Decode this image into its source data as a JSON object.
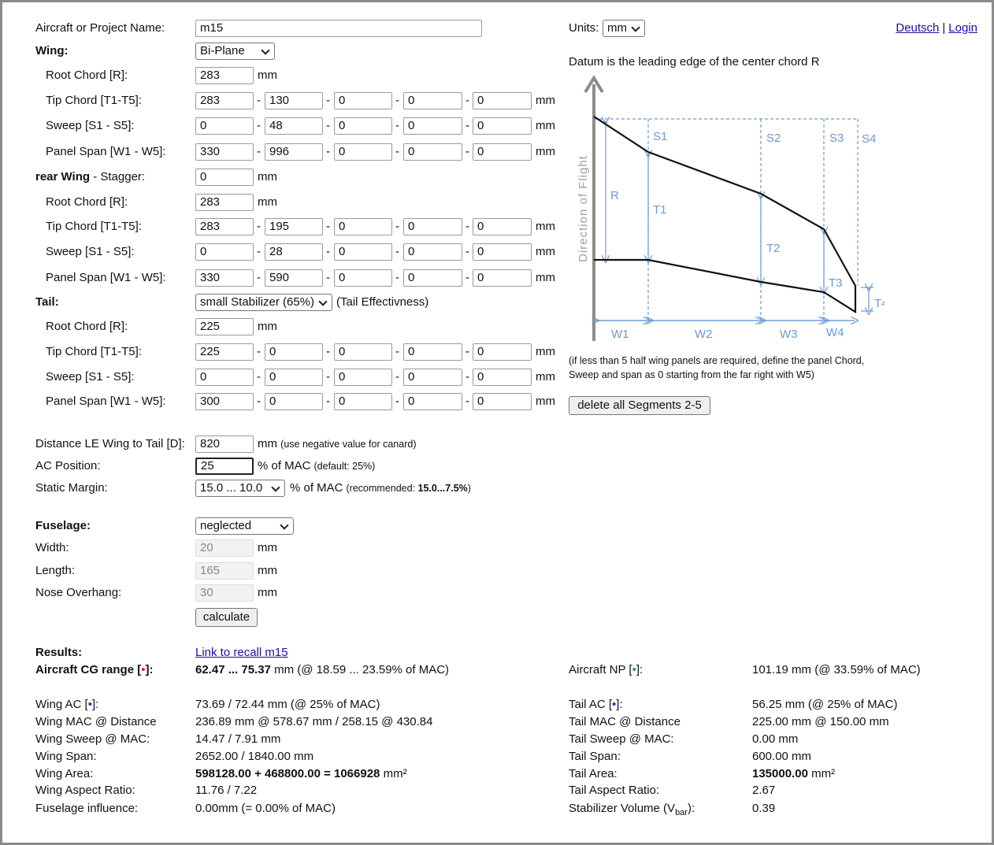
{
  "separator": "-",
  "unit": "mm",
  "header": {
    "name_label": "Aircraft or Project Name:",
    "name_value": "m15",
    "units_label": "Units:",
    "units_value": "mm",
    "link_de": "Deutsch",
    "link_sep": "|",
    "link_login": "Login"
  },
  "wing": {
    "label": "Wing:",
    "type": "Bi-Plane",
    "rows": [
      {
        "label": "Root Chord [R]:",
        "values": [
          283
        ]
      },
      {
        "label": "Tip Chord [T1-T5]:",
        "values": [
          283,
          130,
          0,
          0,
          0
        ]
      },
      {
        "label": "Sweep [S1 - S5]:",
        "values": [
          0,
          48,
          0,
          0,
          0
        ]
      },
      {
        "label": "Panel Span [W1 - W5]:",
        "values": [
          330,
          996,
          0,
          0,
          0
        ]
      }
    ]
  },
  "rear_wing": {
    "label_bold": "rear Wing",
    "label_rest": " - Stagger:",
    "stagger": 0,
    "rows": [
      {
        "label": "Root Chord [R]:",
        "values": [
          283
        ]
      },
      {
        "label": "Tip Chord [T1-T5]:",
        "values": [
          283,
          195,
          0,
          0,
          0
        ]
      },
      {
        "label": "Sweep [S1 - S5]:",
        "values": [
          0,
          28,
          0,
          0,
          0
        ]
      },
      {
        "label": "Panel Span [W1 - W5]:",
        "values": [
          330,
          590,
          0,
          0,
          0
        ]
      }
    ]
  },
  "tail": {
    "label": "Tail:",
    "type": "small Stabilizer (65%)",
    "note": "(Tail Effectivness)",
    "rows": [
      {
        "label": "Root Chord [R]:",
        "values": [
          225
        ]
      },
      {
        "label": "Tip Chord [T1-T5]:",
        "values": [
          225,
          0,
          0,
          0,
          0
        ]
      },
      {
        "label": "Sweep [S1 - S5]:",
        "values": [
          0,
          0,
          0,
          0,
          0
        ]
      },
      {
        "label": "Panel Span [W1 - W5]:",
        "values": [
          300,
          0,
          0,
          0,
          0
        ]
      }
    ]
  },
  "distance": {
    "label": "Distance LE Wing to Tail [D]:",
    "value": 820,
    "unit": "mm",
    "note": "(use negative value for canard)"
  },
  "ac_position": {
    "label": "AC Position:",
    "value": 25,
    "unit": "% of MAC",
    "note": "(default: 25%)"
  },
  "static_margin": {
    "label": "Static Margin:",
    "value": "15.0 ... 10.0",
    "unit": "% of MAC",
    "note_pre": "(recommended: ",
    "note_bold": "15.0...7.5%",
    "note_post": ")"
  },
  "fuselage": {
    "label": "Fuselage:",
    "type": "neglected",
    "rows": [
      {
        "label": "Width:",
        "value": 20
      },
      {
        "label": "Length:",
        "value": 165
      },
      {
        "label": "Nose Overhang:",
        "value": 30
      }
    ]
  },
  "calculate": "calculate",
  "diagram": {
    "datum": "Datum is the leading edge of the center chord R",
    "direction": "Direction of Flight",
    "labels": [
      "S1",
      "S2",
      "S3",
      "S4",
      "R",
      "T1",
      "T2",
      "T3",
      "T4",
      "W1",
      "W2",
      "W3",
      "W4"
    ],
    "note": "(if less than 5 half wing panels are required, define the panel Chord, Sweep and span as 0 starting from the far right with W5)",
    "delete_button": "delete all Segments 2-5"
  },
  "results": {
    "label": "Results:",
    "link": "Link to recall m15",
    "left": [
      {
        "label": [
          {
            "text": "Aircraft CG range [",
            "bold": true
          },
          {
            "text": "•",
            "color": "#e02020"
          },
          {
            "text": "]:",
            "bold": true
          }
        ],
        "value": [
          {
            "text": "62.47 ... 75.37",
            "bold": true
          },
          {
            "text": " mm (@ 18.59 ... 23.59% of MAC)"
          }
        ]
      },
      {
        "label": [
          {
            "text": "Wing AC ["
          },
          {
            "text": "•",
            "color": "#1a2fd0"
          },
          {
            "text": "]:"
          }
        ],
        "value": [
          {
            "text": "73.69 / 72.44 mm (@ 25% of MAC)"
          }
        ]
      },
      {
        "label": [
          {
            "text": "Wing MAC @ Distance"
          }
        ],
        "value": [
          {
            "text": "236.89 mm @ 578.67 mm / 258.15 @ 430.84"
          }
        ]
      },
      {
        "label": [
          {
            "text": "Wing Sweep @ MAC:"
          }
        ],
        "value": [
          {
            "text": "14.47 / 7.91 mm"
          }
        ]
      },
      {
        "label": [
          {
            "text": "Wing Span:"
          }
        ],
        "value": [
          {
            "text": "2652.00 / 1840.00 mm"
          }
        ]
      },
      {
        "label": [
          {
            "text": "Wing Area:"
          }
        ],
        "value": [
          {
            "text": "598128.00 + 468800.00 = 1066928",
            "bold": true
          },
          {
            "text": " mm²"
          }
        ]
      },
      {
        "label": [
          {
            "text": "Wing Aspect Ratio:"
          }
        ],
        "value": [
          {
            "text": "11.76 / 7.22"
          }
        ]
      },
      {
        "label": [
          {
            "text": "Fuselage influence:"
          }
        ],
        "value": [
          {
            "text": "0.00mm (= 0.00% of MAC)"
          }
        ]
      }
    ],
    "right": [
      {
        "label": [
          {
            "text": "Aircraft NP ["
          },
          {
            "text": "•",
            "color": "#20a030"
          },
          {
            "text": "]:"
          }
        ],
        "value": [
          {
            "text": "101.19 mm (@ 33.59% of MAC)"
          }
        ]
      },
      {
        "label": [
          {
            "text": "Tail AC ["
          },
          {
            "text": "•",
            "color": "#1a2fd0"
          },
          {
            "text": "]:"
          }
        ],
        "value": [
          {
            "text": "56.25 mm (@ 25% of MAC)"
          }
        ]
      },
      {
        "label": [
          {
            "text": "Tail MAC @ Distance"
          }
        ],
        "value": [
          {
            "text": "225.00 mm @ 150.00 mm"
          }
        ]
      },
      {
        "label": [
          {
            "text": "Tail Sweep @ MAC:"
          }
        ],
        "value": [
          {
            "text": "0.00 mm"
          }
        ]
      },
      {
        "label": [
          {
            "text": "Tail Span:"
          }
        ],
        "value": [
          {
            "text": "600.00 mm"
          }
        ]
      },
      {
        "label": [
          {
            "text": "Tail Area:"
          }
        ],
        "value": [
          {
            "text": "135000.00",
            "bold": true
          },
          {
            "text": " mm²"
          }
        ]
      },
      {
        "label": [
          {
            "text": "Tail Aspect Ratio:"
          }
        ],
        "value": [
          {
            "text": "2.67"
          }
        ]
      },
      {
        "label": [
          {
            "text": "Stabilizer Volume (V"
          },
          {
            "text": "bar",
            "sub": true
          },
          {
            "text": "):"
          }
        ],
        "value": [
          {
            "text": "0.39"
          }
        ]
      }
    ]
  }
}
